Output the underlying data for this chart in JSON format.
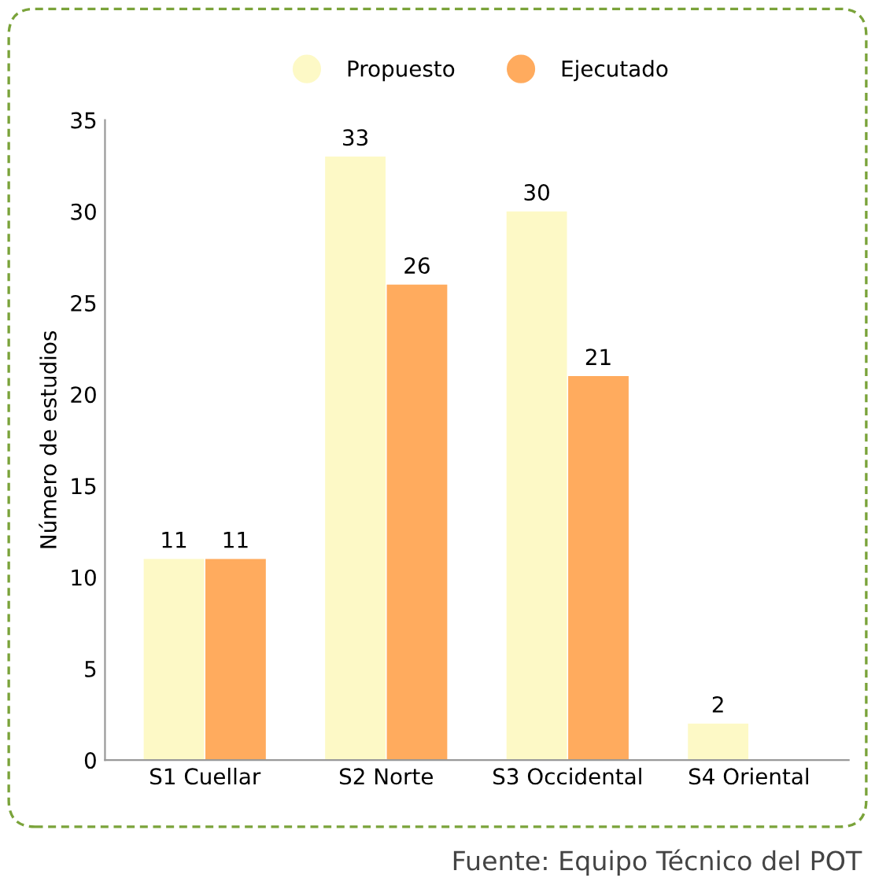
{
  "chart_data": {
    "type": "bar",
    "ylabel": "Número de estudios",
    "categories": [
      "S1 Cuellar",
      "S2 Norte",
      "S3 Occidental",
      "S4 Oriental"
    ],
    "series": [
      {
        "name": "Propuesto",
        "color": "#fdf9c6",
        "values": [
          11,
          33,
          30,
          2
        ],
        "value_labels": [
          "11",
          "33",
          "30",
          "2"
        ]
      },
      {
        "name": "Ejecutado",
        "color": "#ffab5e",
        "values": [
          11,
          26,
          21,
          null
        ],
        "value_labels": [
          "11",
          "26",
          "21",
          null
        ]
      }
    ],
    "ylim": [
      0,
      35
    ],
    "yticks": [
      0,
      5,
      10,
      15,
      20,
      25,
      30,
      35
    ],
    "grid": false,
    "legend": "top",
    "marker": "circle",
    "annotations": [
      "Fuente: Equipo Técnico del POT"
    ]
  }
}
